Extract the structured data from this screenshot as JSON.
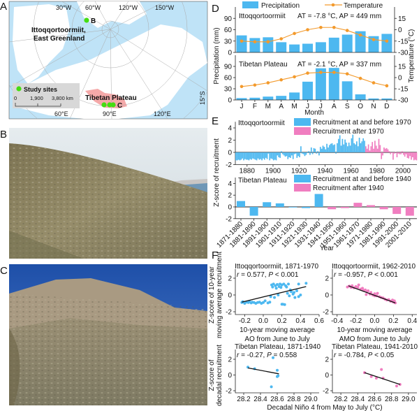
{
  "panels": {
    "a": "A",
    "b": "B",
    "c": "C",
    "d": "D",
    "e": "E",
    "f": "F"
  },
  "map": {
    "lon_labels_top": [
      "30°W",
      "60°W",
      "120°W",
      "150°W"
    ],
    "lon_labels_bottom": [
      "60°E",
      "90°E",
      "120°E"
    ],
    "lat_label": "15°S",
    "site_b_label": "B",
    "site_c_label": "C",
    "site_b_name_1": "Ittoqqortoormiit,",
    "site_b_name_2": "East Greenland",
    "tibet_label": "Tibetan Plateau",
    "legend_label": "Study sites",
    "scale_ticks": [
      "0",
      "1,900",
      "3,800 km"
    ],
    "colors": {
      "ocean": "#bfe3f7",
      "land": "#ffffff",
      "tibet": "#f5a9a9",
      "site": "#44dd11"
    }
  },
  "photos": {
    "b": {
      "desc_icon": "photo-slope-greenland",
      "colors": {
        "sky": "#dfe7ec",
        "ground": "#8c8460"
      }
    },
    "c": {
      "desc_icon": "photo-slope-tibet",
      "colors": {
        "sky": "#2e5fb8",
        "ground": "#8f8a70"
      }
    }
  },
  "legend_d": {
    "precip": "Precipitation",
    "temp": "Temperature"
  },
  "legend_e": {
    "top_before": "Recruitment at and before 1970",
    "top_after": "Recruitment after 1970",
    "bottom_before": "Recruitment at and before 1940",
    "bottom_after": "Recruitment after 1940"
  },
  "colors": {
    "blue": "#4db8f0",
    "pink": "#f07ec0",
    "orange": "#f39a2c",
    "line": "#111111"
  },
  "chart_data": [
    {
      "id": "D-top",
      "type": "bar+line",
      "title": "Ittoqqortoormiit",
      "annotation": "AT = -7.8 °C, AP = 449 mm",
      "categories": [
        "J",
        "F",
        "M",
        "A",
        "M",
        "J",
        "J",
        "A",
        "S",
        "O",
        "N",
        "D"
      ],
      "series": [
        {
          "name": "Precipitation",
          "type": "bar",
          "axis": "left",
          "values": [
            45,
            38,
            40,
            27,
            21,
            23,
            27,
            39,
            47,
            56,
            43,
            49
          ]
        },
        {
          "name": "Temperature",
          "type": "line",
          "axis": "right",
          "values": [
            -15,
            -16,
            -16,
            -12,
            -5,
            0,
            3,
            3,
            -1,
            -7,
            -13,
            -15
          ]
        }
      ],
      "ylabel": "Precipitation (mm)",
      "ylim": [
        0,
        120
      ],
      "yticks": [
        "0",
        "30",
        "60",
        "90"
      ],
      "y2label": "Temperature (°C)",
      "y2lim": [
        -30,
        30
      ],
      "y2ticks": [
        "-30",
        "-15",
        "0",
        "15"
      ]
    },
    {
      "id": "D-bottom",
      "type": "bar+line",
      "title": "Tibetan Plateau",
      "annotation": "AT = -2.1 °C, AP = 337 mm",
      "categories": [
        "J",
        "F",
        "M",
        "A",
        "M",
        "J",
        "J",
        "A",
        "S",
        "O",
        "N",
        "D"
      ],
      "series": [
        {
          "name": "Precipitation",
          "type": "bar",
          "axis": "left",
          "values": [
            5,
            6,
            9,
            11,
            20,
            49,
            85,
            86,
            50,
            15,
            4,
            4
          ]
        },
        {
          "name": "Temperature",
          "type": "line",
          "axis": "right",
          "values": [
            -12,
            -10,
            -7,
            -3,
            1,
            6,
            7,
            7,
            5,
            -1,
            -7,
            -11
          ]
        }
      ],
      "xlabel": "Month",
      "ylim": [
        0,
        120
      ],
      "yticks": [
        "0",
        "30",
        "60",
        "90"
      ],
      "y2lim": [
        -30,
        30
      ],
      "y2ticks": [
        "-30",
        "-15",
        "0",
        "15"
      ]
    },
    {
      "id": "E-top",
      "type": "bar",
      "title": "Ittoqqortoormiit",
      "x_start": 1871,
      "x_end": 2010,
      "split_year": 1970,
      "xticks": [
        "1880",
        "1900",
        "1920",
        "1940",
        "1960",
        "1980",
        "2000"
      ],
      "ylabel": "Z-score of recruitment",
      "ylim": [
        -2,
        5
      ],
      "yticks": [
        "-2",
        "0",
        "2",
        "4"
      ],
      "values": [
        -1.3,
        -1.3,
        -1.2,
        -1.3,
        -1.2,
        -1.0,
        -1.3,
        -1.1,
        -1.2,
        -1.2,
        -1.3,
        -1.1,
        -1.2,
        -1.0,
        -1.1,
        -1.2,
        -1.3,
        -1.0,
        -1.2,
        -1.1,
        -1.3,
        -1.0,
        -1.2,
        -0.9,
        -1.1,
        -0.2,
        -1.3,
        -1.0,
        -1.1,
        -1.3,
        -1.2,
        -1.3,
        -0.5,
        -0.8,
        -0.9,
        0.2,
        -0.3,
        -0.5,
        -0.7,
        -0.6,
        -1.1,
        -0.8,
        -0.9,
        -0.5,
        -1.1,
        -0.3,
        -0.2,
        -0.9,
        -0.6,
        -0.8,
        1.0,
        -0.2,
        -0.3,
        -0.6,
        -0.4,
        -0.1,
        0.2,
        -0.4,
        0.8,
        -0.3,
        0.7,
        0.6,
        -0.2,
        0.2,
        -0.5,
        0.9,
        0.6,
        1.1,
        0.9,
        0.5,
        1.4,
        0.8,
        1.2,
        1.4,
        1.5,
        1.2,
        1.3,
        -0.2,
        1.5,
        2.2,
        2.8,
        1.1,
        2.2,
        1.3,
        2.1,
        1.6,
        1.0,
        1.6,
        1.1,
        2.3,
        2.9,
        1.5,
        1.3,
        1.8,
        1.0,
        2.4,
        1.5,
        1.8,
        2.3,
        1.9,
        1.0,
        0.6,
        1.3,
        0.3,
        1.0,
        1.7,
        0.6,
        1.9,
        1.1,
        0.6,
        2.2,
        1.2,
        -1.1,
        -0.5,
        0.8,
        0.6,
        0.7,
        0.5,
        0.2,
        -0.3,
        -0.1,
        -1.2,
        -0.2,
        0.1,
        -0.8,
        -0.2,
        -0.3,
        -0.3,
        0.2,
        -0.4,
        -0.7,
        -0.3,
        -0.9,
        -1.0,
        -0.6,
        -1.2,
        -0.8,
        -1.3,
        -1.2,
        -1.3
      ]
    },
    {
      "id": "E-bottom",
      "type": "bar",
      "title": "Tibetan Plateau",
      "categories": [
        "1871-1880",
        "1881-1890",
        "1891-1900",
        "1901-1910",
        "1911-1920",
        "1921-1930",
        "1931-1940",
        "1941-1950",
        "1951-1960",
        "1961-1970",
        "1971-1980",
        "1981-1990",
        "1991-2000",
        "2001-2010"
      ],
      "values": [
        1.0,
        -1.5,
        0.8,
        0.6,
        -0.1,
        -0.2,
        2.2,
        -0.4,
        -0.2,
        0.7,
        0.3,
        -0.4,
        -1.2,
        -1.5
      ],
      "split_index": 7,
      "xlabel": "Year",
      "ylim": [
        -2,
        5
      ],
      "yticks": [
        "-2",
        "0",
        "2",
        "4"
      ]
    },
    {
      "id": "F-top-left",
      "type": "scatter",
      "title": "Ittoqqortoormiit, 1871-1970",
      "stat_r": "r",
      "stat_rest": " = 0.577, ",
      "stat_p": "P",
      "stat_end": " < 0.001",
      "xlabel_1": "10-year moving average",
      "xlabel_2": "AO from June to July",
      "ylabel_1": "Z-score of 10-year",
      "ylabel_2": "moving average recruitment",
      "xlim": [
        -0.3,
        0.6
      ],
      "xticks": [
        "-0.2",
        "0.0",
        "0.2",
        "0.4",
        "0.6"
      ],
      "ylim": [
        -2,
        3
      ],
      "yticks": [
        "-2",
        "0",
        "2"
      ],
      "fit": [
        [
          -0.23,
          -0.85
        ],
        [
          0.46,
          1.0
        ]
      ],
      "color": "blue",
      "points": [
        [
          -0.23,
          -0.9
        ],
        [
          -0.22,
          -0.8
        ],
        [
          -0.2,
          -1.0
        ],
        [
          -0.18,
          -0.85
        ],
        [
          -0.16,
          -0.9
        ],
        [
          -0.15,
          -0.75
        ],
        [
          -0.13,
          -0.95
        ],
        [
          -0.12,
          -0.85
        ],
        [
          -0.1,
          -0.9
        ],
        [
          -0.08,
          -1.0
        ],
        [
          -0.06,
          -0.9
        ],
        [
          -0.04,
          -0.85
        ],
        [
          -0.02,
          -1.0
        ],
        [
          0.0,
          -0.9
        ],
        [
          0.02,
          -0.7
        ],
        [
          0.05,
          -0.95
        ],
        [
          0.07,
          -0.85
        ],
        [
          0.09,
          1.2
        ],
        [
          0.1,
          0.95
        ],
        [
          0.11,
          1.3
        ],
        [
          0.13,
          1.1
        ],
        [
          0.14,
          0.8
        ],
        [
          0.15,
          1.25
        ],
        [
          0.17,
          1.0
        ],
        [
          0.18,
          1.3
        ],
        [
          0.19,
          0.9
        ],
        [
          0.2,
          1.2
        ],
        [
          0.22,
          1.3
        ],
        [
          0.24,
          1.1
        ],
        [
          0.25,
          0.95
        ],
        [
          0.27,
          1.3
        ],
        [
          0.21,
          -1.1
        ],
        [
          0.23,
          -1.15
        ],
        [
          0.2,
          -1.1
        ],
        [
          0.26,
          0.2
        ],
        [
          0.28,
          -0.1
        ],
        [
          0.3,
          0.4
        ],
        [
          0.32,
          0.1
        ],
        [
          0.34,
          -0.3
        ],
        [
          0.36,
          0.5
        ],
        [
          0.38,
          -0.2
        ],
        [
          0.4,
          0.0
        ],
        [
          0.33,
          0.3
        ],
        [
          0.29,
          0.6
        ],
        [
          0.38,
          1.3
        ],
        [
          0.46,
          1.4
        ],
        [
          0.16,
          0.0
        ],
        [
          0.12,
          -0.3
        ],
        [
          0.08,
          -0.2
        ]
      ]
    },
    {
      "id": "F-top-right",
      "type": "scatter",
      "title": "Ittoqqortoormiit, 1962-2010",
      "stat_r": "r",
      "stat_rest": " = -0.957, ",
      "stat_p": "P",
      "stat_end": " < 0.001",
      "xlabel_1": "10-year moving average",
      "xlabel_2": "AMO from June to July",
      "xlim": [
        -0.45,
        0.45
      ],
      "xticks": [
        "-0.4",
        "-0.2",
        "0.0",
        "0.2",
        "0.4"
      ],
      "ylim": [
        -2,
        3
      ],
      "yticks": [
        "-2",
        "0",
        "2"
      ],
      "fit": [
        [
          -0.28,
          1.1
        ],
        [
          0.22,
          -0.95
        ]
      ],
      "color": "pink",
      "points": [
        [
          -0.29,
          0.95
        ],
        [
          -0.27,
          1.05
        ],
        [
          -0.25,
          0.9
        ],
        [
          -0.24,
          1.1
        ],
        [
          -0.22,
          0.85
        ],
        [
          -0.2,
          1.0
        ],
        [
          -0.18,
          0.9
        ],
        [
          -0.17,
          1.2
        ],
        [
          -0.15,
          0.7
        ],
        [
          -0.13,
          0.8
        ],
        [
          -0.12,
          0.55
        ],
        [
          -0.1,
          0.6
        ],
        [
          -0.08,
          0.4
        ],
        [
          -0.07,
          0.5
        ],
        [
          -0.05,
          0.1
        ],
        [
          -0.04,
          0.3
        ],
        [
          -0.02,
          0.0
        ],
        [
          0.0,
          0.15
        ],
        [
          0.02,
          -0.1
        ],
        [
          0.03,
          0.2
        ],
        [
          0.05,
          -0.2
        ],
        [
          0.07,
          -0.3
        ],
        [
          0.09,
          -0.35
        ],
        [
          0.11,
          -0.5
        ],
        [
          0.13,
          -0.6
        ],
        [
          0.15,
          -0.55
        ],
        [
          0.17,
          -0.75
        ],
        [
          0.19,
          -0.6
        ],
        [
          0.2,
          -0.85
        ],
        [
          0.22,
          -0.95
        ],
        [
          0.21,
          -0.7
        ],
        [
          -0.09,
          0.05
        ],
        [
          0.0,
          -0.1
        ]
      ]
    },
    {
      "id": "F-bottom-left",
      "type": "scatter",
      "title": "Tibetan Plateau, 1871-1940",
      "stat_r": "r",
      "stat_rest": " = -0.27, ",
      "stat_p": "P",
      "stat_end": " = 0.558",
      "ylabel_1": "Z-score of",
      "ylabel_2": "decadal recruitment",
      "xlim": [
        28.1,
        29.1
      ],
      "xticks": [
        "28.2",
        "28.4",
        "28.6",
        "28.8",
        "29.0"
      ],
      "ylim": [
        -2,
        3
      ],
      "yticks": [
        "-2",
        "0",
        "2"
      ],
      "fit": [
        [
          28.25,
          0.9
        ],
        [
          28.62,
          0.15
        ]
      ],
      "color": "blue",
      "points": [
        [
          28.25,
          1.0
        ],
        [
          28.33,
          0.8
        ],
        [
          28.55,
          2.2
        ],
        [
          28.6,
          0.6
        ],
        [
          28.61,
          -0.1
        ],
        [
          28.6,
          -0.2
        ],
        [
          28.53,
          -1.5
        ]
      ]
    },
    {
      "id": "F-bottom-right",
      "type": "scatter",
      "title": "Tibetan Plateau, 1941-2010",
      "stat_r": "r",
      "stat_rest": " = -0.784, ",
      "stat_p": "P",
      "stat_end": " < 0.05",
      "xlim": [
        28.1,
        29.1
      ],
      "xticks": [
        "28.2",
        "28.4",
        "28.6",
        "28.8",
        "29.0"
      ],
      "ylim": [
        -2,
        3
      ],
      "yticks": [
        "-2",
        "0",
        "2"
      ],
      "fit": [
        [
          28.48,
          0.3
        ],
        [
          28.9,
          -1.2
        ]
      ],
      "color": "pink",
      "points": [
        [
          28.48,
          0.3
        ],
        [
          28.56,
          -0.2
        ],
        [
          28.62,
          -0.4
        ],
        [
          28.68,
          0.7
        ],
        [
          28.7,
          -0.4
        ],
        [
          28.86,
          -1.4
        ],
        [
          28.9,
          -1.2
        ]
      ]
    }
  ],
  "f_xlabel_bottom": "Decadal Niño 4 from May to July (°C)"
}
